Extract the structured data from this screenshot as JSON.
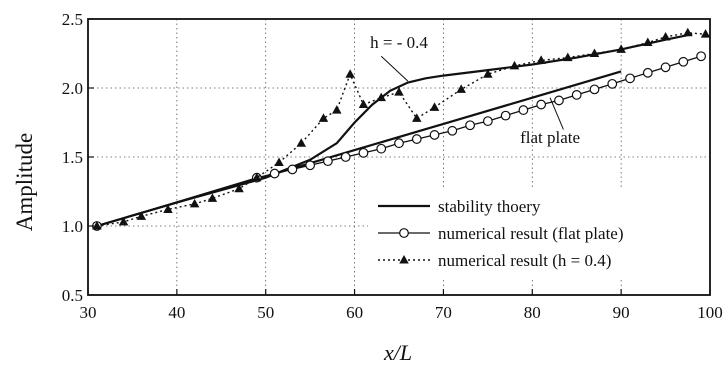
{
  "chart_data": {
    "type": "line",
    "xlabel": "x/L",
    "ylabel": "Amplitude",
    "xlim": [
      30,
      100
    ],
    "ylim": [
      0.5,
      2.5
    ],
    "x_ticks": [
      "30",
      "40",
      "50",
      "60",
      "70",
      "80",
      "90",
      "100"
    ],
    "y_ticks": [
      "0.5",
      "1.0",
      "1.5",
      "2.0",
      "2.5"
    ],
    "grid": true,
    "legend_position": "bottom-right",
    "series": [
      {
        "name": "stability thoery",
        "style": "solid",
        "marker": "none",
        "x": [
          31,
          40,
          50,
          55,
          58,
          60,
          62,
          64,
          66,
          68,
          70,
          75,
          80,
          85,
          90,
          95,
          98
        ],
        "y": [
          1.0,
          1.17,
          1.35,
          1.48,
          1.6,
          1.75,
          1.88,
          1.98,
          2.04,
          2.07,
          2.09,
          2.13,
          2.17,
          2.22,
          2.28,
          2.35,
          2.39
        ]
      },
      {
        "name": "stability thoery",
        "style": "solid",
        "marker": "none",
        "x": [
          31,
          40,
          50,
          60,
          70,
          80,
          90
        ],
        "y": [
          1.0,
          1.17,
          1.36,
          1.55,
          1.74,
          1.93,
          2.12
        ]
      },
      {
        "name": "numerical result (flat plate)",
        "style": "solid",
        "marker": "circle",
        "x": [
          31,
          49,
          51,
          53,
          55,
          57,
          59,
          61,
          63,
          65,
          67,
          69,
          71,
          73,
          75,
          77,
          79,
          81,
          83,
          85,
          87,
          89,
          91,
          93,
          95,
          97,
          99
        ],
        "y": [
          1.0,
          1.35,
          1.38,
          1.41,
          1.44,
          1.47,
          1.5,
          1.53,
          1.56,
          1.6,
          1.63,
          1.66,
          1.69,
          1.73,
          1.76,
          1.8,
          1.84,
          1.88,
          1.91,
          1.95,
          1.99,
          2.03,
          2.07,
          2.11,
          2.15,
          2.19,
          2.23
        ]
      },
      {
        "name": "numerical result (h = 0.4)",
        "style": "dotted",
        "marker": "triangle",
        "x": [
          31,
          34,
          36,
          39,
          42,
          44,
          47,
          49,
          51.5,
          54,
          56.5,
          58,
          59.5,
          61,
          63,
          65,
          67,
          69,
          72,
          75,
          78,
          81,
          84,
          87,
          90,
          93,
          95,
          97.5,
          99.5
        ],
        "y": [
          1.0,
          1.03,
          1.07,
          1.12,
          1.16,
          1.2,
          1.27,
          1.35,
          1.46,
          1.6,
          1.78,
          1.84,
          2.1,
          1.88,
          1.93,
          1.97,
          1.78,
          1.86,
          1.99,
          2.1,
          2.16,
          2.2,
          2.22,
          2.25,
          2.28,
          2.33,
          2.37,
          2.4,
          2.39
        ]
      }
    ],
    "annotations": [
      {
        "text": "h = - 0.4",
        "x": 65,
        "y": 2.29
      },
      {
        "text": "flat plate",
        "x": 82,
        "y": 1.6
      }
    ]
  },
  "legend": {
    "items": [
      {
        "label": "stability thoery",
        "style": "solid",
        "marker": "none"
      },
      {
        "label": "numerical result (flat plate)",
        "style": "solid",
        "marker": "circle"
      },
      {
        "label": "numerical result (h = 0.4)",
        "style": "dotted",
        "marker": "triangle"
      }
    ]
  }
}
